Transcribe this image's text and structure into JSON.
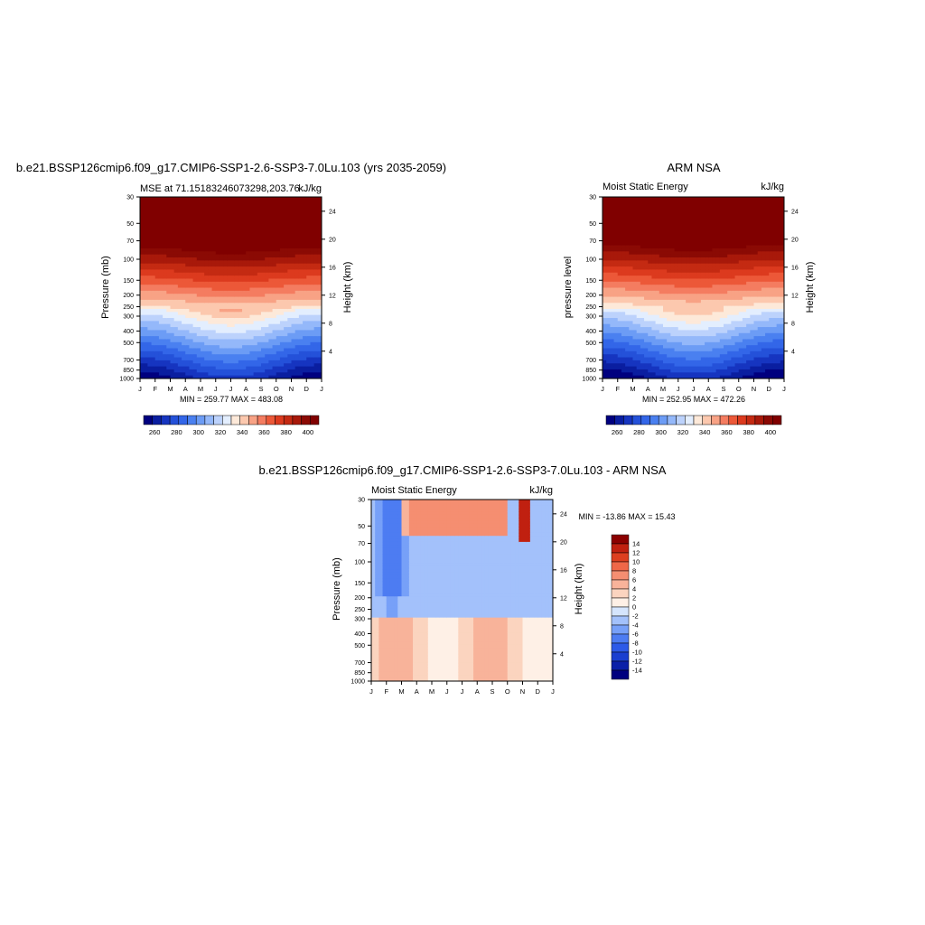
{
  "chart_data": [
    {
      "type": "heatmap",
      "title": "b.e21.BSSP126cmip6.f09_g17.CMIP6-SSP1-2.6-SSP3-7.0Lu.103 (yrs 2035-2059)",
      "subtitle_left": "MSE at 71.15183246073298,203.76",
      "subtitle_right": "kJ/kg",
      "xlabel": "",
      "ylabel": "Pressure (mb)",
      "ylabel_right": "Height (km)",
      "x_ticks": [
        "J",
        "F",
        "M",
        "A",
        "M",
        "J",
        "J",
        "A",
        "S",
        "O",
        "N",
        "D",
        "J"
      ],
      "y_ticks": [
        "30",
        "50",
        "70",
        "100",
        "150",
        "200",
        "250",
        "300",
        "400",
        "500",
        "700",
        "850",
        "1000"
      ],
      "y_ticks_right": [
        "24",
        "20",
        "16",
        "12",
        "8",
        "4"
      ],
      "stats": "MIN = 259.77 MAX = 483.08",
      "field": "contour levels of moist static energy vs month and pressure",
      "low_values_near_surface_in_winter": true,
      "colorbar": {
        "levels": [
          255,
          260,
          265,
          270,
          275,
          280,
          285,
          290,
          295,
          300,
          305,
          310,
          315,
          320,
          325,
          330,
          335,
          340,
          345,
          350,
          355,
          360,
          365,
          370,
          375,
          380,
          385,
          390,
          395,
          400,
          405
        ],
        "labels": [
          "260",
          "280",
          "300",
          "320",
          "340",
          "360",
          "380",
          "400"
        ],
        "colors": [
          "#00007f",
          "#0a1ea0",
          "#1635c0",
          "#2451d9",
          "#3366e8",
          "#4a80f0",
          "#6c9cf5",
          "#94b8fa",
          "#bcd2fc",
          "#e3eefe",
          "#fde9d9",
          "#fcc8ae",
          "#f8a285",
          "#f47c60",
          "#ec5838",
          "#dc3a1e",
          "#c42a12",
          "#a8190a",
          "#8b0a04",
          "#800000"
        ]
      }
    },
    {
      "type": "heatmap",
      "title": "ARM NSA",
      "subtitle_left": "Moist Static Energy",
      "subtitle_right": "kJ/kg",
      "ylabel": "pressure level",
      "ylabel_right": "Height (km)",
      "x_ticks": [
        "J",
        "F",
        "M",
        "A",
        "M",
        "J",
        "J",
        "A",
        "S",
        "O",
        "N",
        "D",
        "J"
      ],
      "y_ticks": [
        "30",
        "50",
        "70",
        "100",
        "150",
        "200",
        "250",
        "300",
        "400",
        "500",
        "700",
        "850",
        "1000"
      ],
      "y_ticks_right": [
        "24",
        "20",
        "16",
        "12",
        "8",
        "4"
      ],
      "stats": "MIN = 252.95 MAX = 472.26",
      "colorbar": {
        "labels": [
          "260",
          "280",
          "300",
          "320",
          "340",
          "360",
          "380",
          "400"
        ]
      }
    },
    {
      "type": "heatmap",
      "title": "b.e21.BSSP126cmip6.f09_g17.CMIP6-SSP1-2.6-SSP3-7.0Lu.103 - ARM NSA",
      "subtitle_left": "Moist Static Energy",
      "subtitle_right": "kJ/kg",
      "ylabel": "Pressure (mb)",
      "ylabel_right": "Height (km)",
      "x_ticks": [
        "J",
        "F",
        "M",
        "A",
        "M",
        "J",
        "J",
        "A",
        "S",
        "O",
        "N",
        "D",
        "J"
      ],
      "y_ticks": [
        "30",
        "50",
        "70",
        "100",
        "150",
        "200",
        "250",
        "300",
        "400",
        "500",
        "700",
        "850",
        "1000"
      ],
      "y_ticks_right": [
        "24",
        "20",
        "16",
        "12",
        "8",
        "4"
      ],
      "stats": "MIN = -13.86 MAX =  15.43",
      "colorbar": {
        "levels": [
          -15,
          -14,
          -13,
          -12,
          -11,
          -10,
          -9,
          -8,
          -7,
          -6,
          -5,
          -4,
          -3,
          -2,
          -1,
          0,
          1,
          2,
          3,
          4,
          5,
          6,
          7,
          8,
          9,
          10,
          11,
          12,
          13,
          14,
          15
        ],
        "labels": [
          "14",
          "12",
          "10",
          "8",
          "6",
          "4",
          "2",
          "0",
          "-2",
          "-4",
          "-6",
          "-8",
          "-10",
          "-12",
          "-14"
        ],
        "colors": [
          "#00007f",
          "#0a20a8",
          "#1a3fd0",
          "#2d5ae8",
          "#4d7cf2",
          "#77a0f8",
          "#a3c1fb",
          "#d5e5fd",
          "#fef0e6",
          "#fbd4bf",
          "#f8b39a",
          "#f58e71",
          "#ef6748",
          "#dd3f20",
          "#c02010",
          "#8b0000"
        ]
      }
    }
  ]
}
